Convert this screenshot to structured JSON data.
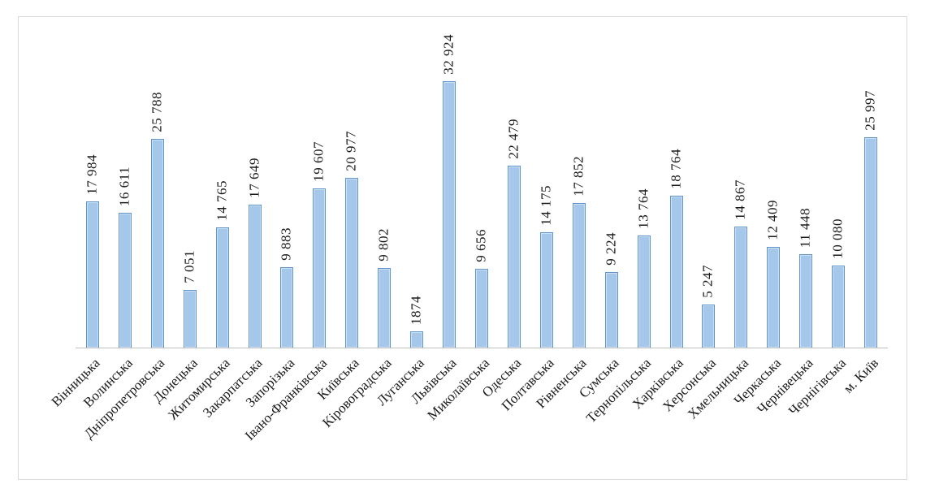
{
  "chart_data": {
    "type": "bar",
    "title": "",
    "xlabel": "",
    "ylabel": "",
    "legend": null,
    "grid": false,
    "ylim": [
      0,
      35000
    ],
    "categories": [
      "Вінницька",
      "Волинська",
      "Дніпропетровська",
      "Донецька",
      "Житомирська",
      "Закарпатська",
      "Запорізька",
      "Івано-Франківська",
      "Київська",
      "Кіровоградська",
      "Луганська",
      "Львівська",
      "Миколаївська",
      "Одеська",
      "Полтавська",
      "Рівненська",
      "Сумська",
      "Тернопільська",
      "Харківська",
      "Херсонська",
      "Хмельницька",
      "Черкаська",
      "Чернівецька",
      "Чернігівська",
      "м. Київ"
    ],
    "values": [
      17984,
      16611,
      25788,
      7051,
      14765,
      17649,
      9883,
      19607,
      20977,
      9802,
      1874,
      32924,
      9656,
      22479,
      14175,
      17852,
      9224,
      13764,
      18764,
      5247,
      14867,
      12409,
      11448,
      10080,
      25997
    ],
    "value_labels": [
      "17 984",
      "16 611",
      "25 788",
      "7 051",
      "14 765",
      "17 649",
      "9 883",
      "19 607",
      "20 977",
      "9 802",
      "1874",
      "32 924",
      "9 656",
      "22 479",
      "14 175",
      "17 852",
      "9 224",
      "13 764",
      "18 764",
      "5 247",
      "14 867",
      "12 409",
      "11 448",
      "10 080",
      "25 997"
    ],
    "label_rotation": {
      "values": 90,
      "categories": 45
    },
    "colors": {
      "bar_fill": "#A5C7E9",
      "bar_border": "#5E96CC",
      "axis_line": "#BFBFBF",
      "frame_border": "#D9D9D9",
      "text": "#1A1A1A"
    }
  }
}
